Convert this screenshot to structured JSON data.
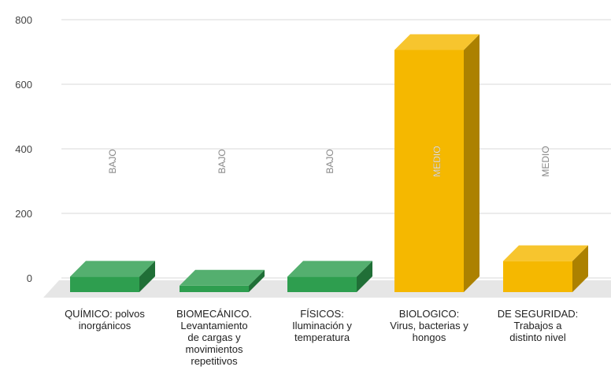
{
  "chart_data": {
    "type": "bar",
    "title": "",
    "xlabel": "",
    "ylabel": "",
    "ylim": [
      0,
      800
    ],
    "yticks": [
      0,
      200,
      400,
      600,
      800
    ],
    "grid": true,
    "legend": "none",
    "style": "3d-bar",
    "categories": [
      [
        "QUÍMICO: polvos",
        "inorgánicos"
      ],
      [
        "BIOMECÁNICO.",
        "Levantamiento",
        "de cargas y",
        "movimientos",
        "repetitivos"
      ],
      [
        "FÍSICOS:",
        "Iluminación y",
        "temperatura"
      ],
      [
        "BIOLOGICO:",
        "Virus, bacterias y",
        "hongos"
      ],
      [
        "DE SEGURIDAD:",
        "Trabajos a",
        "distinto nivel"
      ]
    ],
    "values": [
      48,
      20,
      48,
      750,
      96
    ],
    "labels": [
      "BAJO",
      "BAJO",
      "BAJO",
      "MEDIO",
      "MEDIO"
    ],
    "colors": [
      "#2e9e4f",
      "#2e9e4f",
      "#2e9e4f",
      "#f5b800",
      "#f5b800"
    ]
  }
}
